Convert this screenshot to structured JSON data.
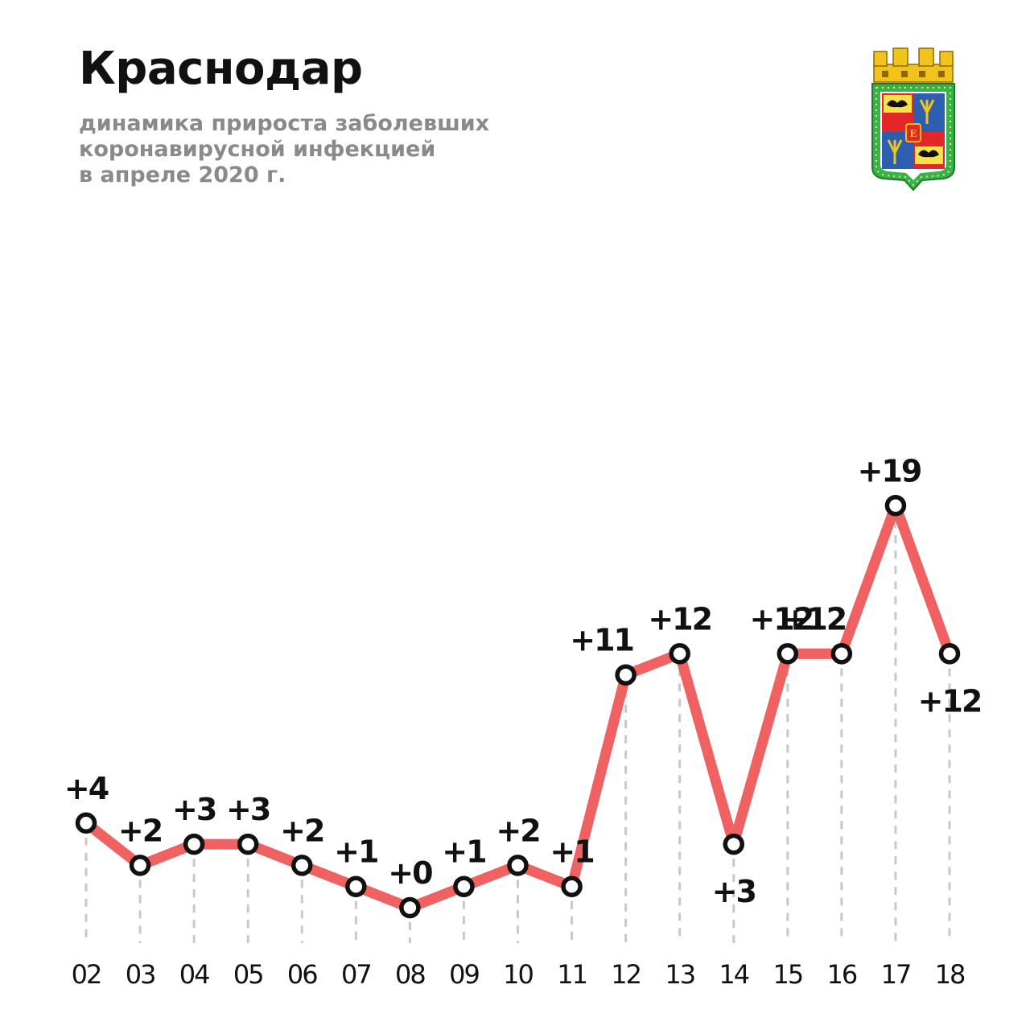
{
  "header": {
    "title": "Краснодар",
    "subtitle_lines": [
      "динамика прироста заболевших",
      "коронавирусной инфекцией",
      "в апреле 2020 г."
    ]
  },
  "colors": {
    "line": "#f06262",
    "marker_stroke": "#111111",
    "marker_fill": "#ffffff",
    "grid": "#c8c8c8",
    "subtitle": "#8a8a8a",
    "coat_shield": "#36b34a",
    "coat_crown": "#f2c31a"
  },
  "chart_data": {
    "type": "line",
    "title": "",
    "xlabel": "",
    "ylabel": "",
    "categories": [
      "02",
      "03",
      "04",
      "05",
      "06",
      "07",
      "08",
      "09",
      "10",
      "11",
      "12",
      "13",
      "14",
      "15",
      "16",
      "17",
      "18"
    ],
    "values": [
      4,
      2,
      3,
      3,
      2,
      1,
      0,
      1,
      2,
      1,
      11,
      12,
      3,
      12,
      12,
      19,
      12
    ],
    "data_labels": [
      "+4",
      "+2",
      "+3",
      "+3",
      "+2",
      "+1",
      "+0",
      "+1",
      "+2",
      "+1",
      "+11",
      "+12",
      "+3",
      "+12",
      "+12",
      "+19",
      "+12"
    ],
    "grid": "vertical dashed drop lines",
    "legend": "none"
  }
}
